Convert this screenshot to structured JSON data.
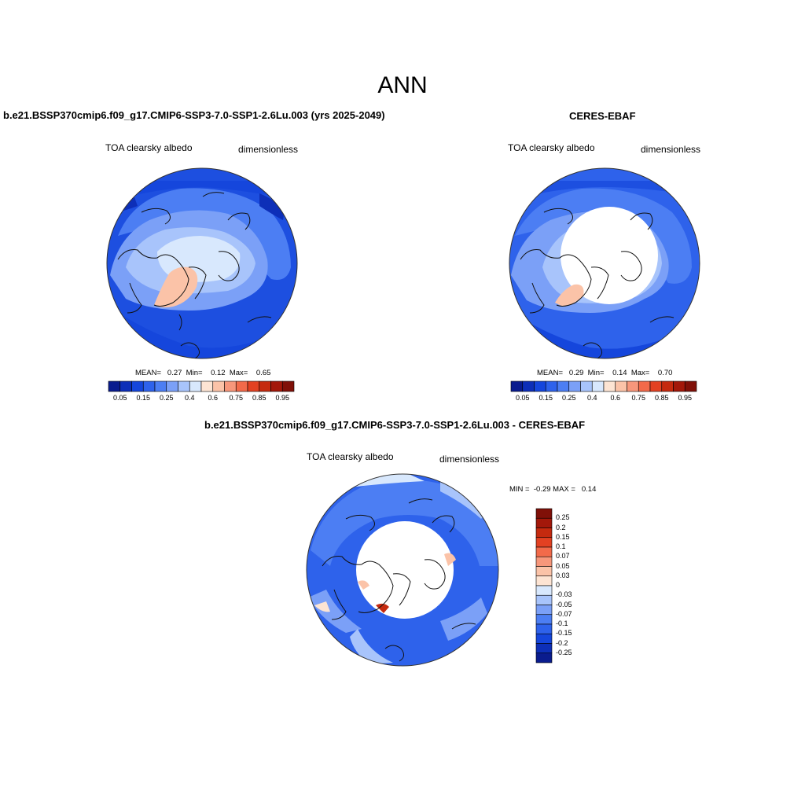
{
  "title": "ANN",
  "colors": {
    "land_outline": "#111111",
    "abs_palette": [
      "#0a1c8e",
      "#0d2fb8",
      "#1546dc",
      "#2e62eb",
      "#4c7ef3",
      "#7ba0f7",
      "#a8c4fb",
      "#d8e8fd",
      "#fde4d3",
      "#fbc3a8",
      "#f7977b",
      "#f26a4a",
      "#e34122",
      "#c52a0f",
      "#a3180a",
      "#801008"
    ],
    "diff_palette": [
      "#0a1c8e",
      "#0d2fb8",
      "#1546dc",
      "#2e62eb",
      "#4c7ef3",
      "#7ba0f7",
      "#a8c4fb",
      "#d8e8fd",
      "#fde4d3",
      "#fbc3a8",
      "#f7977b",
      "#f26a4a",
      "#e34122",
      "#c52a0f",
      "#a3180a",
      "#801008"
    ]
  },
  "panels": {
    "model": {
      "title": "b.e21.BSSP370cmip6.f09_g17.CMIP6-SSP3-7.0-SSP1-2.6Lu.003 (yrs 2025-2049)",
      "variable": "TOA clearsky albedo",
      "units": "dimensionless",
      "stats": "MEAN=   0.27  Min=    0.12  Max=    0.65"
    },
    "obs": {
      "title": "CERES-EBAF",
      "variable": "TOA clearsky albedo",
      "units": "dimensionless",
      "stats": "MEAN=   0.29  Min=    0.14  Max=    0.70"
    },
    "diff": {
      "title": "b.e21.BSSP370cmip6.f09_g17.CMIP6-SSP3-7.0-SSP1-2.6Lu.003 - CERES-EBAF",
      "variable": "TOA clearsky albedo",
      "units": "dimensionless",
      "minmax": "MIN =  -0.29 MAX =   0.14"
    }
  },
  "colorbars": {
    "abs_ticks": [
      "0.05",
      "0.15",
      "0.25",
      "0.4",
      "0.6",
      "0.75",
      "0.85",
      "0.95"
    ],
    "diff_ticks": [
      "0.25",
      "0.2",
      "0.15",
      "0.1",
      "0.07",
      "0.05",
      "0.03",
      "0",
      "-0.03",
      "-0.05",
      "-0.07",
      "-0.1",
      "-0.15",
      "-0.2",
      "-0.25"
    ]
  }
}
